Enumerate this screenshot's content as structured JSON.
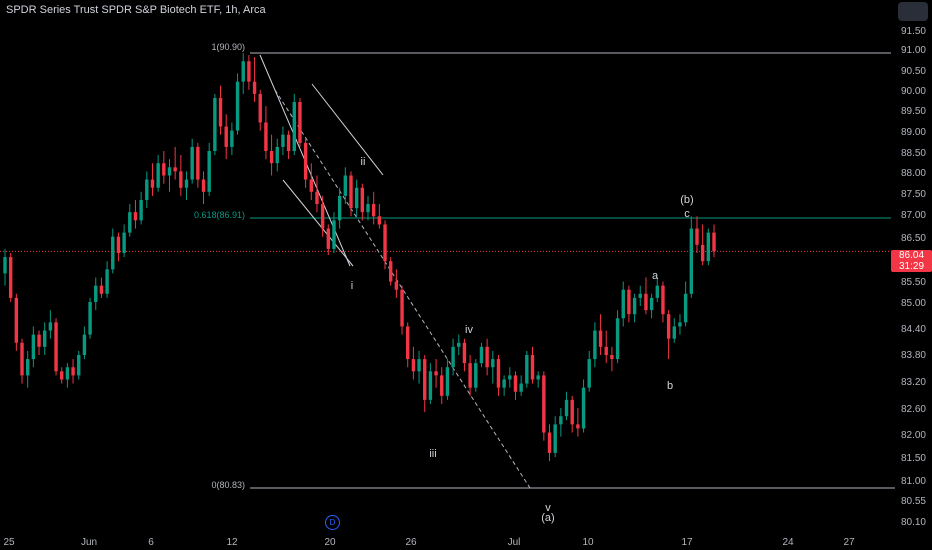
{
  "header": {
    "title": "SPDR Series Trust SPDR S&P Biotech ETF, 1h, Arca"
  },
  "price_label": {
    "price": "86.04",
    "countdown": "31:29"
  },
  "marker": {
    "label": "D"
  },
  "chart_data": {
    "type": "candlestick",
    "y_axis": {
      "ticks": [
        "91.50",
        "91.00",
        "90.50",
        "90.00",
        "89.50",
        "89.00",
        "88.50",
        "88.00",
        "87.50",
        "87.00",
        "86.50",
        "86.04",
        "85.50",
        "85.00",
        "84.40",
        "83.80",
        "83.20",
        "82.60",
        "82.00",
        "81.50",
        "81.00",
        "80.55",
        "80.10"
      ],
      "ylim": [
        80.1,
        91.5
      ]
    },
    "x_axis": {
      "ticks": [
        "25",
        "Jun",
        "6",
        "12",
        "20",
        "26",
        "Jul",
        "10",
        "17",
        "24",
        "27"
      ]
    },
    "levels": [
      {
        "label": "1(90.90)",
        "value": 90.9,
        "color": "#b2b5be"
      },
      {
        "label": "0.618(86.91)",
        "value": 86.91,
        "color": "#089981"
      },
      {
        "label": "0(80.83)",
        "value": 80.83,
        "color": "#b2b5be"
      }
    ],
    "current_price": 86.04,
    "wave_labels": [
      "ii",
      "i",
      "iii",
      "iv",
      "v",
      "(a)",
      "a",
      "b",
      "(b)",
      "c"
    ],
    "colors": {
      "up": "#089981",
      "down": "#f23645",
      "background": "#000000"
    },
    "grid": false,
    "candles": [
      {
        "o": 85.5,
        "h": 86.1,
        "l": 85.2,
        "c": 85.9
      },
      {
        "o": 85.9,
        "h": 86.0,
        "l": 84.8,
        "c": 84.9
      },
      {
        "o": 84.9,
        "h": 85.0,
        "l": 83.6,
        "c": 83.8
      },
      {
        "o": 83.8,
        "h": 83.9,
        "l": 82.8,
        "c": 83.0
      },
      {
        "o": 83.0,
        "h": 83.6,
        "l": 82.7,
        "c": 83.4
      },
      {
        "o": 83.4,
        "h": 84.2,
        "l": 83.2,
        "c": 84.0
      },
      {
        "o": 84.0,
        "h": 84.1,
        "l": 83.5,
        "c": 83.7
      },
      {
        "o": 83.7,
        "h": 84.3,
        "l": 83.5,
        "c": 84.1
      },
      {
        "o": 84.1,
        "h": 84.6,
        "l": 83.9,
        "c": 84.3
      },
      {
        "o": 84.3,
        "h": 84.4,
        "l": 83.0,
        "c": 83.1
      },
      {
        "o": 83.1,
        "h": 83.2,
        "l": 82.8,
        "c": 82.9
      },
      {
        "o": 82.9,
        "h": 83.3,
        "l": 82.7,
        "c": 83.2
      },
      {
        "o": 83.2,
        "h": 83.4,
        "l": 82.8,
        "c": 83.0
      },
      {
        "o": 83.0,
        "h": 83.6,
        "l": 82.9,
        "c": 83.5
      },
      {
        "o": 83.5,
        "h": 84.2,
        "l": 83.4,
        "c": 84.0
      },
      {
        "o": 84.0,
        "h": 84.9,
        "l": 83.9,
        "c": 84.8
      },
      {
        "o": 84.8,
        "h": 85.4,
        "l": 84.6,
        "c": 85.2
      },
      {
        "o": 85.2,
        "h": 85.4,
        "l": 84.9,
        "c": 85.0
      },
      {
        "o": 85.0,
        "h": 85.8,
        "l": 84.9,
        "c": 85.6
      },
      {
        "o": 85.6,
        "h": 86.6,
        "l": 85.5,
        "c": 86.4
      },
      {
        "o": 86.4,
        "h": 86.5,
        "l": 85.8,
        "c": 86.0
      },
      {
        "o": 86.0,
        "h": 86.7,
        "l": 85.9,
        "c": 86.5
      },
      {
        "o": 86.5,
        "h": 87.2,
        "l": 86.4,
        "c": 87.0
      },
      {
        "o": 87.0,
        "h": 87.3,
        "l": 86.6,
        "c": 86.8
      },
      {
        "o": 86.8,
        "h": 87.5,
        "l": 86.7,
        "c": 87.3
      },
      {
        "o": 87.3,
        "h": 88.0,
        "l": 87.1,
        "c": 87.8
      },
      {
        "o": 87.8,
        "h": 88.2,
        "l": 87.4,
        "c": 87.6
      },
      {
        "o": 87.6,
        "h": 88.4,
        "l": 87.5,
        "c": 88.2
      },
      {
        "o": 88.2,
        "h": 88.5,
        "l": 87.7,
        "c": 87.9
      },
      {
        "o": 87.9,
        "h": 88.3,
        "l": 87.5,
        "c": 88.1
      },
      {
        "o": 88.1,
        "h": 88.6,
        "l": 87.8,
        "c": 88.0
      },
      {
        "o": 88.0,
        "h": 88.4,
        "l": 87.4,
        "c": 87.6
      },
      {
        "o": 87.6,
        "h": 88.0,
        "l": 87.3,
        "c": 87.8
      },
      {
        "o": 87.8,
        "h": 88.8,
        "l": 87.7,
        "c": 88.6
      },
      {
        "o": 88.6,
        "h": 88.7,
        "l": 87.6,
        "c": 87.8
      },
      {
        "o": 87.8,
        "h": 88.0,
        "l": 87.2,
        "c": 87.5
      },
      {
        "o": 87.5,
        "h": 88.7,
        "l": 87.4,
        "c": 88.5
      },
      {
        "o": 88.5,
        "h": 89.9,
        "l": 88.4,
        "c": 89.8
      },
      {
        "o": 89.8,
        "h": 90.1,
        "l": 88.9,
        "c": 89.1
      },
      {
        "o": 89.1,
        "h": 89.4,
        "l": 88.3,
        "c": 88.6
      },
      {
        "o": 88.6,
        "h": 89.2,
        "l": 88.4,
        "c": 89.0
      },
      {
        "o": 89.0,
        "h": 90.4,
        "l": 88.9,
        "c": 90.2
      },
      {
        "o": 90.2,
        "h": 90.9,
        "l": 89.9,
        "c": 90.7
      },
      {
        "o": 90.7,
        "h": 90.85,
        "l": 90.0,
        "c": 90.2
      },
      {
        "o": 90.2,
        "h": 90.8,
        "l": 89.7,
        "c": 89.9
      },
      {
        "o": 89.9,
        "h": 90.0,
        "l": 89.0,
        "c": 89.2
      },
      {
        "o": 89.2,
        "h": 89.6,
        "l": 88.3,
        "c": 88.5
      },
      {
        "o": 88.5,
        "h": 88.9,
        "l": 87.9,
        "c": 88.2
      },
      {
        "o": 88.2,
        "h": 88.8,
        "l": 88.0,
        "c": 88.6
      },
      {
        "o": 88.6,
        "h": 89.1,
        "l": 88.4,
        "c": 88.9
      },
      {
        "o": 88.9,
        "h": 89.0,
        "l": 88.3,
        "c": 88.5
      },
      {
        "o": 88.5,
        "h": 89.9,
        "l": 88.4,
        "c": 89.7
      },
      {
        "o": 89.7,
        "h": 89.8,
        "l": 88.6,
        "c": 88.7
      },
      {
        "o": 88.7,
        "h": 88.8,
        "l": 87.6,
        "c": 87.8
      },
      {
        "o": 87.8,
        "h": 88.2,
        "l": 87.3,
        "c": 87.5
      },
      {
        "o": 87.5,
        "h": 87.9,
        "l": 87.0,
        "c": 87.2
      },
      {
        "o": 87.2,
        "h": 87.4,
        "l": 86.4,
        "c": 86.6
      },
      {
        "o": 86.6,
        "h": 86.7,
        "l": 85.95,
        "c": 86.1
      },
      {
        "o": 86.1,
        "h": 87.0,
        "l": 86.0,
        "c": 86.8
      },
      {
        "o": 86.8,
        "h": 87.6,
        "l": 86.6,
        "c": 87.4
      },
      {
        "o": 87.4,
        "h": 88.1,
        "l": 87.2,
        "c": 87.9
      },
      {
        "o": 87.9,
        "h": 88.0,
        "l": 86.9,
        "c": 87.1
      },
      {
        "o": 87.1,
        "h": 87.8,
        "l": 86.9,
        "c": 87.6
      },
      {
        "o": 87.6,
        "h": 87.7,
        "l": 86.8,
        "c": 87.0
      },
      {
        "o": 87.0,
        "h": 87.4,
        "l": 86.8,
        "c": 87.2
      },
      {
        "o": 87.2,
        "h": 87.5,
        "l": 86.7,
        "c": 86.9
      },
      {
        "o": 86.9,
        "h": 87.2,
        "l": 86.6,
        "c": 86.7
      },
      {
        "o": 86.7,
        "h": 86.8,
        "l": 85.6,
        "c": 85.8
      },
      {
        "o": 85.8,
        "h": 85.9,
        "l": 85.2,
        "c": 85.3
      },
      {
        "o": 85.3,
        "h": 85.6,
        "l": 84.9,
        "c": 85.1
      },
      {
        "o": 85.1,
        "h": 85.2,
        "l": 84.0,
        "c": 84.2
      },
      {
        "o": 84.2,
        "h": 84.3,
        "l": 83.2,
        "c": 83.4
      },
      {
        "o": 83.4,
        "h": 83.7,
        "l": 82.9,
        "c": 83.1
      },
      {
        "o": 83.1,
        "h": 83.6,
        "l": 82.8,
        "c": 83.4
      },
      {
        "o": 83.4,
        "h": 83.5,
        "l": 82.1,
        "c": 82.4
      },
      {
        "o": 82.4,
        "h": 83.3,
        "l": 82.3,
        "c": 83.1
      },
      {
        "o": 83.1,
        "h": 83.4,
        "l": 82.7,
        "c": 83.0
      },
      {
        "o": 83.0,
        "h": 83.2,
        "l": 82.3,
        "c": 82.5
      },
      {
        "o": 82.5,
        "h": 83.4,
        "l": 82.4,
        "c": 83.2
      },
      {
        "o": 83.2,
        "h": 83.9,
        "l": 83.0,
        "c": 83.7
      },
      {
        "o": 83.7,
        "h": 84.0,
        "l": 83.5,
        "c": 83.8
      },
      {
        "o": 83.8,
        "h": 83.9,
        "l": 83.1,
        "c": 83.3
      },
      {
        "o": 83.3,
        "h": 83.5,
        "l": 82.5,
        "c": 82.7
      },
      {
        "o": 82.7,
        "h": 83.4,
        "l": 82.6,
        "c": 83.3
      },
      {
        "o": 83.3,
        "h": 83.8,
        "l": 83.2,
        "c": 83.7
      },
      {
        "o": 83.7,
        "h": 83.9,
        "l": 83.0,
        "c": 83.2
      },
      {
        "o": 83.2,
        "h": 83.6,
        "l": 82.8,
        "c": 83.4
      },
      {
        "o": 83.4,
        "h": 83.5,
        "l": 82.5,
        "c": 82.7
      },
      {
        "o": 82.7,
        "h": 83.0,
        "l": 82.5,
        "c": 82.9
      },
      {
        "o": 82.9,
        "h": 83.2,
        "l": 82.7,
        "c": 83.0
      },
      {
        "o": 83.0,
        "h": 83.1,
        "l": 82.4,
        "c": 82.6
      },
      {
        "o": 82.6,
        "h": 83.0,
        "l": 82.5,
        "c": 82.8
      },
      {
        "o": 82.8,
        "h": 83.6,
        "l": 82.7,
        "c": 83.5
      },
      {
        "o": 83.5,
        "h": 83.7,
        "l": 82.8,
        "c": 82.9
      },
      {
        "o": 82.9,
        "h": 83.1,
        "l": 82.7,
        "c": 83.0
      },
      {
        "o": 83.0,
        "h": 83.1,
        "l": 81.4,
        "c": 81.6
      },
      {
        "o": 81.6,
        "h": 81.8,
        "l": 80.9,
        "c": 81.1
      },
      {
        "o": 81.1,
        "h": 82.0,
        "l": 81.0,
        "c": 81.8
      },
      {
        "o": 81.8,
        "h": 82.2,
        "l": 81.5,
        "c": 82.0
      },
      {
        "o": 82.0,
        "h": 82.6,
        "l": 81.9,
        "c": 82.4
      },
      {
        "o": 82.4,
        "h": 82.5,
        "l": 81.6,
        "c": 81.8
      },
      {
        "o": 81.8,
        "h": 82.2,
        "l": 81.5,
        "c": 81.7
      },
      {
        "o": 81.7,
        "h": 82.9,
        "l": 81.6,
        "c": 82.7
      },
      {
        "o": 82.7,
        "h": 83.6,
        "l": 82.6,
        "c": 83.4
      },
      {
        "o": 83.4,
        "h": 84.3,
        "l": 83.2,
        "c": 84.1
      },
      {
        "o": 84.1,
        "h": 84.5,
        "l": 83.5,
        "c": 83.7
      },
      {
        "o": 83.7,
        "h": 84.1,
        "l": 83.3,
        "c": 83.5
      },
      {
        "o": 83.5,
        "h": 83.7,
        "l": 83.1,
        "c": 83.4
      },
      {
        "o": 83.4,
        "h": 84.6,
        "l": 83.3,
        "c": 84.4
      },
      {
        "o": 84.4,
        "h": 85.3,
        "l": 84.2,
        "c": 85.1
      },
      {
        "o": 85.1,
        "h": 85.2,
        "l": 84.3,
        "c": 84.5
      },
      {
        "o": 84.5,
        "h": 85.0,
        "l": 84.3,
        "c": 84.9
      },
      {
        "o": 84.9,
        "h": 85.2,
        "l": 84.7,
        "c": 85.0
      },
      {
        "o": 85.0,
        "h": 85.4,
        "l": 84.5,
        "c": 84.6
      },
      {
        "o": 84.6,
        "h": 85.0,
        "l": 84.4,
        "c": 84.9
      },
      {
        "o": 84.9,
        "h": 85.4,
        "l": 84.8,
        "c": 85.2
      },
      {
        "o": 85.2,
        "h": 85.3,
        "l": 84.3,
        "c": 84.5
      },
      {
        "o": 84.5,
        "h": 84.6,
        "l": 83.4,
        "c": 83.9
      },
      {
        "o": 83.9,
        "h": 84.4,
        "l": 83.8,
        "c": 84.2
      },
      {
        "o": 84.2,
        "h": 84.5,
        "l": 84.0,
        "c": 84.3
      },
      {
        "o": 84.3,
        "h": 85.3,
        "l": 84.2,
        "c": 85.0
      },
      {
        "o": 85.0,
        "h": 86.9,
        "l": 84.9,
        "c": 86.6
      },
      {
        "o": 86.6,
        "h": 86.9,
        "l": 86.0,
        "c": 86.2
      },
      {
        "o": 86.2,
        "h": 86.7,
        "l": 85.7,
        "c": 85.8
      },
      {
        "o": 85.8,
        "h": 86.6,
        "l": 85.7,
        "c": 86.5
      },
      {
        "o": 86.5,
        "h": 86.7,
        "l": 85.9,
        "c": 86.04
      }
    ]
  }
}
